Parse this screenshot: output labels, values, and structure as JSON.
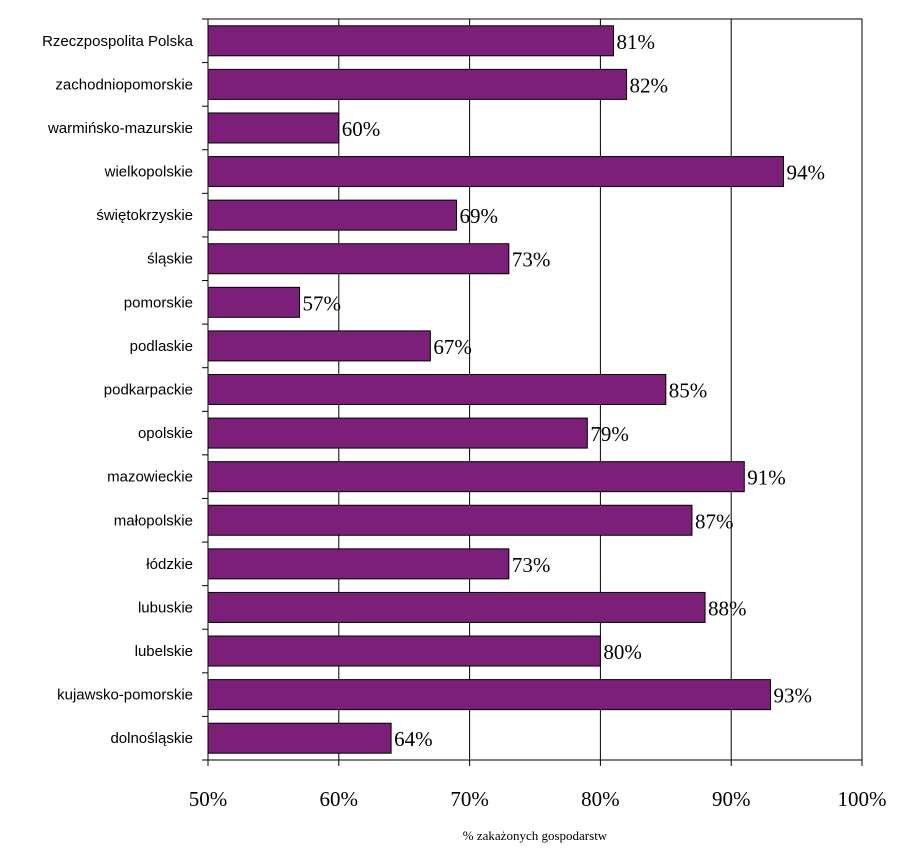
{
  "chart_data": {
    "type": "bar",
    "orientation": "horizontal",
    "categories": [
      "Rzeczpospolita Polska",
      "zachodniopomorskie",
      "warmińsko-mazurskie",
      "wielkopolskie",
      "świętokrzyskie",
      "śląskie",
      "pomorskie",
      "podlaskie",
      "podkarpackie",
      "opolskie",
      "mazowieckie",
      "małopolskie",
      "łódzkie",
      "lubuskie",
      "lubelskie",
      "kujawsko-pomorskie",
      "dolnośląskie"
    ],
    "values": [
      81,
      82,
      60,
      94,
      69,
      73,
      57,
      67,
      85,
      79,
      91,
      87,
      73,
      88,
      80,
      93,
      64
    ],
    "value_labels": [
      "81%",
      "82%",
      "60%",
      "94%",
      "69%",
      "73%",
      "57%",
      "67%",
      "85%",
      "79%",
      "91%",
      "87%",
      "73%",
      "88%",
      "80%",
      "93%",
      "64%"
    ],
    "xlim": [
      50,
      100
    ],
    "x_ticks": [
      50,
      60,
      70,
      80,
      90,
      100
    ],
    "x_tick_labels": [
      "50%",
      "60%",
      "70%",
      "80%",
      "90%",
      "100%"
    ],
    "xlabel": "% zakażonych gospodarstw",
    "grid": "vertical",
    "bar_color": "#7b1f78"
  }
}
